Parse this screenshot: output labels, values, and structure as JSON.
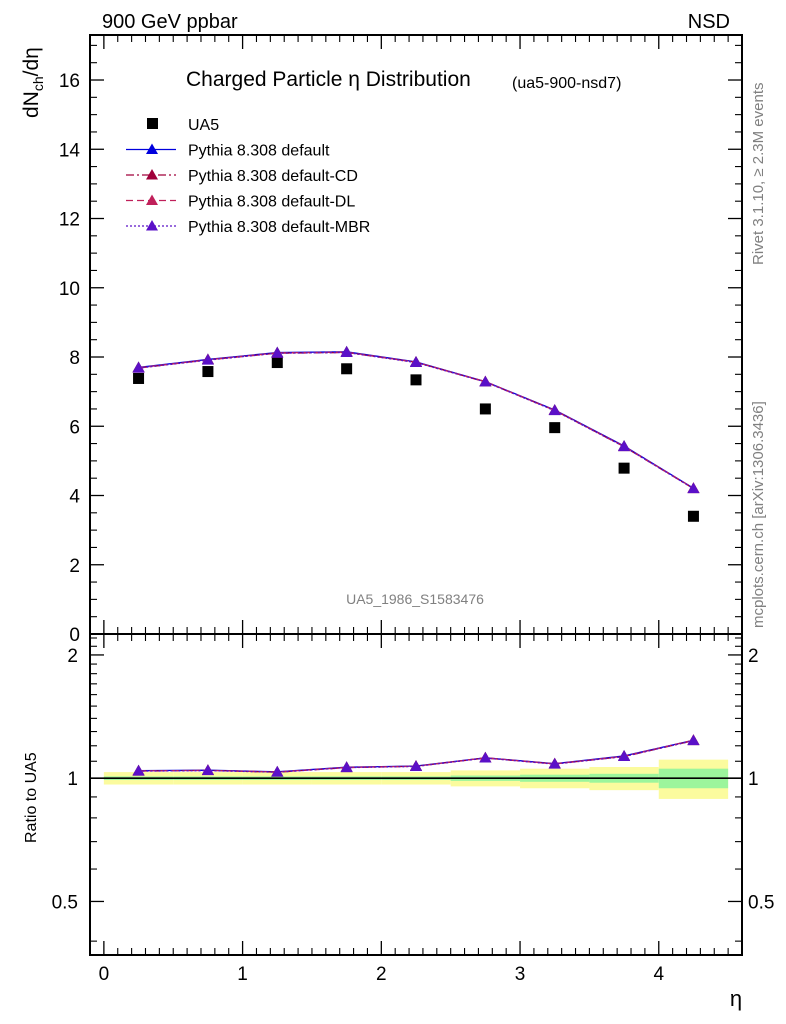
{
  "header": {
    "energy_label": "900 GeV ppbar",
    "process_label": "NSD",
    "plot_title": "Charged Particle η Distribution",
    "analysis_tag": "(ua5-900-nsd7)",
    "watermark": "UA5_1986_S1583476",
    "rivet_label": "Rivet 3.1.10, ≥ 2.3M events",
    "mcplots_label": "mcplots.cern.ch [arXiv:1306.3436]"
  },
  "legend": {
    "entries": [
      {
        "label": "UA5",
        "color": "#000000",
        "marker": "square",
        "style": "none"
      },
      {
        "label": "Pythia 8.308 default",
        "color": "#0000dd",
        "marker": "triangle",
        "style": "solid"
      },
      {
        "label": "Pythia 8.308 default-CD",
        "color": "#a0003a",
        "marker": "triangle",
        "style": "dashdot"
      },
      {
        "label": "Pythia 8.308 default-DL",
        "color": "#c0205a",
        "marker": "triangle",
        "style": "dashed"
      },
      {
        "label": "Pythia 8.308 default-MBR",
        "color": "#5a10c8",
        "marker": "triangle",
        "style": "dotted"
      }
    ]
  },
  "chart_data": [
    {
      "type": "scatter",
      "panel": "main",
      "ylabel_main": "dN",
      "ylabel_sub": "ch",
      "ylabel_tail": "/dη",
      "xlim": [
        -0.1,
        4.6
      ],
      "ylim": [
        0,
        17.3
      ],
      "yticks": [
        0,
        2,
        4,
        6,
        8,
        10,
        12,
        14,
        16
      ],
      "ytick_labels": [
        "0",
        "2",
        "4",
        "6",
        "8",
        "10",
        "12",
        "14",
        "16"
      ],
      "x": [
        0.25,
        0.75,
        1.25,
        1.75,
        2.25,
        2.75,
        3.25,
        3.75,
        4.25
      ],
      "series": [
        {
          "name": "UA5",
          "values": [
            7.38,
            7.58,
            7.84,
            7.66,
            7.34,
            6.5,
            5.96,
            4.79,
            3.4
          ]
        },
        {
          "name": "Pythia 8.308 default",
          "values": [
            7.7,
            7.93,
            8.13,
            8.15,
            7.86,
            7.29,
            6.47,
            5.43,
            4.21
          ]
        },
        {
          "name": "Pythia 8.308 default-CD",
          "values": [
            7.68,
            7.92,
            8.11,
            8.13,
            7.85,
            7.28,
            6.46,
            5.41,
            4.2
          ]
        },
        {
          "name": "Pythia 8.308 default-DL",
          "values": [
            7.69,
            7.92,
            8.12,
            8.14,
            7.85,
            7.29,
            6.46,
            5.42,
            4.21
          ]
        },
        {
          "name": "Pythia 8.308 default-MBR",
          "values": [
            7.68,
            7.91,
            8.11,
            8.13,
            7.84,
            7.28,
            6.45,
            5.41,
            4.2
          ]
        }
      ]
    },
    {
      "type": "scatter",
      "panel": "ratio",
      "ylabel": "Ratio to UA5",
      "xlabel": "η",
      "xlim": [
        -0.1,
        4.6
      ],
      "ylim": [
        0.37,
        2.25
      ],
      "yticks": [
        0.5,
        1,
        2
      ],
      "ytick_labels": [
        "0.5",
        "1",
        "2"
      ],
      "xticks": [
        0,
        1,
        2,
        3,
        4
      ],
      "xtick_labels": [
        "0",
        "1",
        "2",
        "3",
        "4"
      ],
      "x": [
        0.25,
        0.75,
        1.25,
        1.75,
        2.25,
        2.75,
        3.25,
        3.75,
        4.25
      ],
      "ratio_values": [
        1.043,
        1.046,
        1.037,
        1.064,
        1.071,
        1.122,
        1.086,
        1.133,
        1.237
      ],
      "band_stat": [
        0.01,
        0.01,
        0.01,
        0.01,
        0.01,
        0.015,
        0.02,
        0.025,
        0.055
      ],
      "band_total": [
        0.035,
        0.035,
        0.035,
        0.035,
        0.035,
        0.045,
        0.055,
        0.065,
        0.11
      ]
    }
  ]
}
